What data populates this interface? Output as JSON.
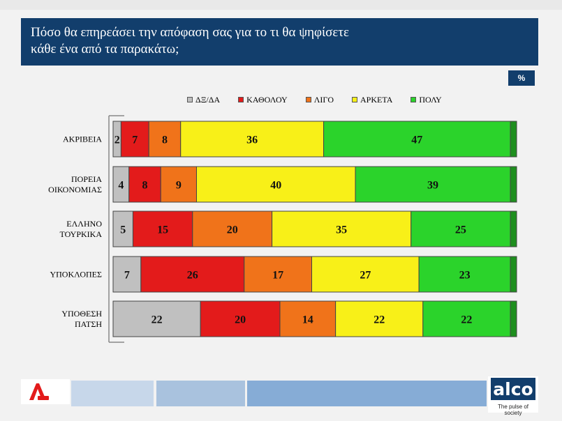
{
  "header": {
    "title_line1": "Πόσο θα επηρεάσει την απόφαση σας για το τι θα ψηφίσετε",
    "title_line2": "κάθε ένα από τα παρακάτω;"
  },
  "unit_badge": "%",
  "colors": {
    "header_bg": "#123e6c",
    "dxda": "#c0c0c0",
    "katholou": "#e31b1b",
    "ligo": "#f0731a",
    "arketa": "#f8f018",
    "poly": "#2bd32b",
    "poly_edge": "#1e8f1e"
  },
  "chart_data": {
    "type": "bar",
    "orientation": "horizontal",
    "stacked": true,
    "categories": [
      [
        "ΑΚΡΙΒΕΙΑ"
      ],
      [
        "ΠΟΡΕΙΑ",
        "ΟΙΚΟΝΟΜΙΑΣ"
      ],
      [
        "ΕΛΛΗΝΟ",
        "ΤΟΥΡΚΙΚΑ"
      ],
      [
        "ΥΠΟΚΛΟΠΕΣ"
      ],
      [
        "ΥΠΟΘΕΣΗ",
        "ΠΑΤΣΗ"
      ]
    ],
    "series": [
      {
        "name": "ΔΞ/ΔΑ",
        "color": "#c0c0c0",
        "values": [
          2,
          4,
          5,
          7,
          22
        ]
      },
      {
        "name": "ΚΑΘΟΛΟΥ",
        "color": "#e31b1b",
        "values": [
          7,
          8,
          15,
          26,
          20
        ]
      },
      {
        "name": "ΛΙΓΟ",
        "color": "#f0731a",
        "values": [
          8,
          9,
          20,
          17,
          14
        ]
      },
      {
        "name": "ΑΡΚΕΤΑ",
        "color": "#f8f018",
        "values": [
          36,
          40,
          35,
          27,
          22
        ]
      },
      {
        "name": "ΠΟΛΥ",
        "color": "#2bd32b",
        "values": [
          47,
          39,
          25,
          23,
          22
        ]
      }
    ],
    "xlim": [
      0,
      100
    ],
    "legend_position": "top",
    "grid": false
  },
  "footer": {
    "alco_logo": "alco",
    "alco_tagline": "The pulse of society",
    "band_colors": [
      "#dce3ea",
      "#c7d7ea",
      "#a9c2de",
      "#86acd6"
    ]
  }
}
